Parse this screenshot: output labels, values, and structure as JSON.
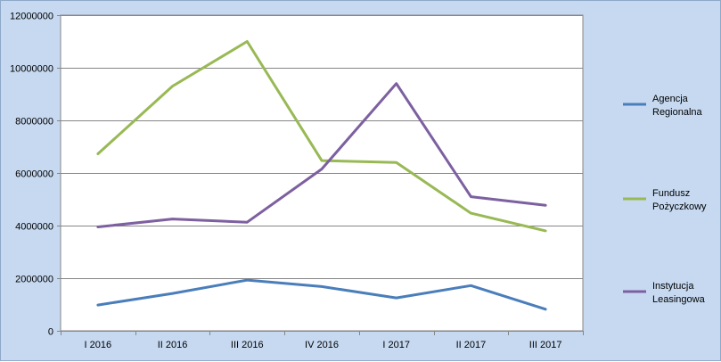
{
  "colors": {
    "chart_background": "#c6d9f1",
    "plot_background": "#ffffff",
    "gridline": "#868686"
  },
  "chart_data": {
    "type": "line",
    "categories": [
      "I 2016",
      "II 2016",
      "III 2016",
      "IV 2016",
      "I 2017",
      "II 2017",
      "III 2017"
    ],
    "ylim": [
      0,
      12000000
    ],
    "yticks": [
      0,
      2000000,
      4000000,
      6000000,
      8000000,
      10000000,
      12000000
    ],
    "ytick_labels": [
      "0",
      "2000000",
      "4000000",
      "6000000",
      "8000000",
      "10000000",
      "12000000"
    ],
    "grid": true,
    "legend_position": "right",
    "series": [
      {
        "name": "Agencja Regionalna",
        "name_lines": [
          "Agencja",
          "Regionalna"
        ],
        "color": "#4a7ebb",
        "values": [
          980000,
          1420000,
          1930000,
          1680000,
          1250000,
          1720000,
          820000
        ]
      },
      {
        "name": "Fundusz Pożyczkowy",
        "name_lines": [
          "Fundusz",
          "Pożyczkowy"
        ],
        "color": "#98b954",
        "values": [
          6730000,
          9300000,
          11000000,
          6470000,
          6400000,
          4470000,
          3800000
        ]
      },
      {
        "name": "Instytucja Leasingowa",
        "name_lines": [
          "Instytucja",
          "Leasingowa"
        ],
        "color": "#7d60a0",
        "values": [
          3950000,
          4250000,
          4130000,
          6150000,
          9400000,
          5100000,
          4770000
        ]
      }
    ]
  }
}
